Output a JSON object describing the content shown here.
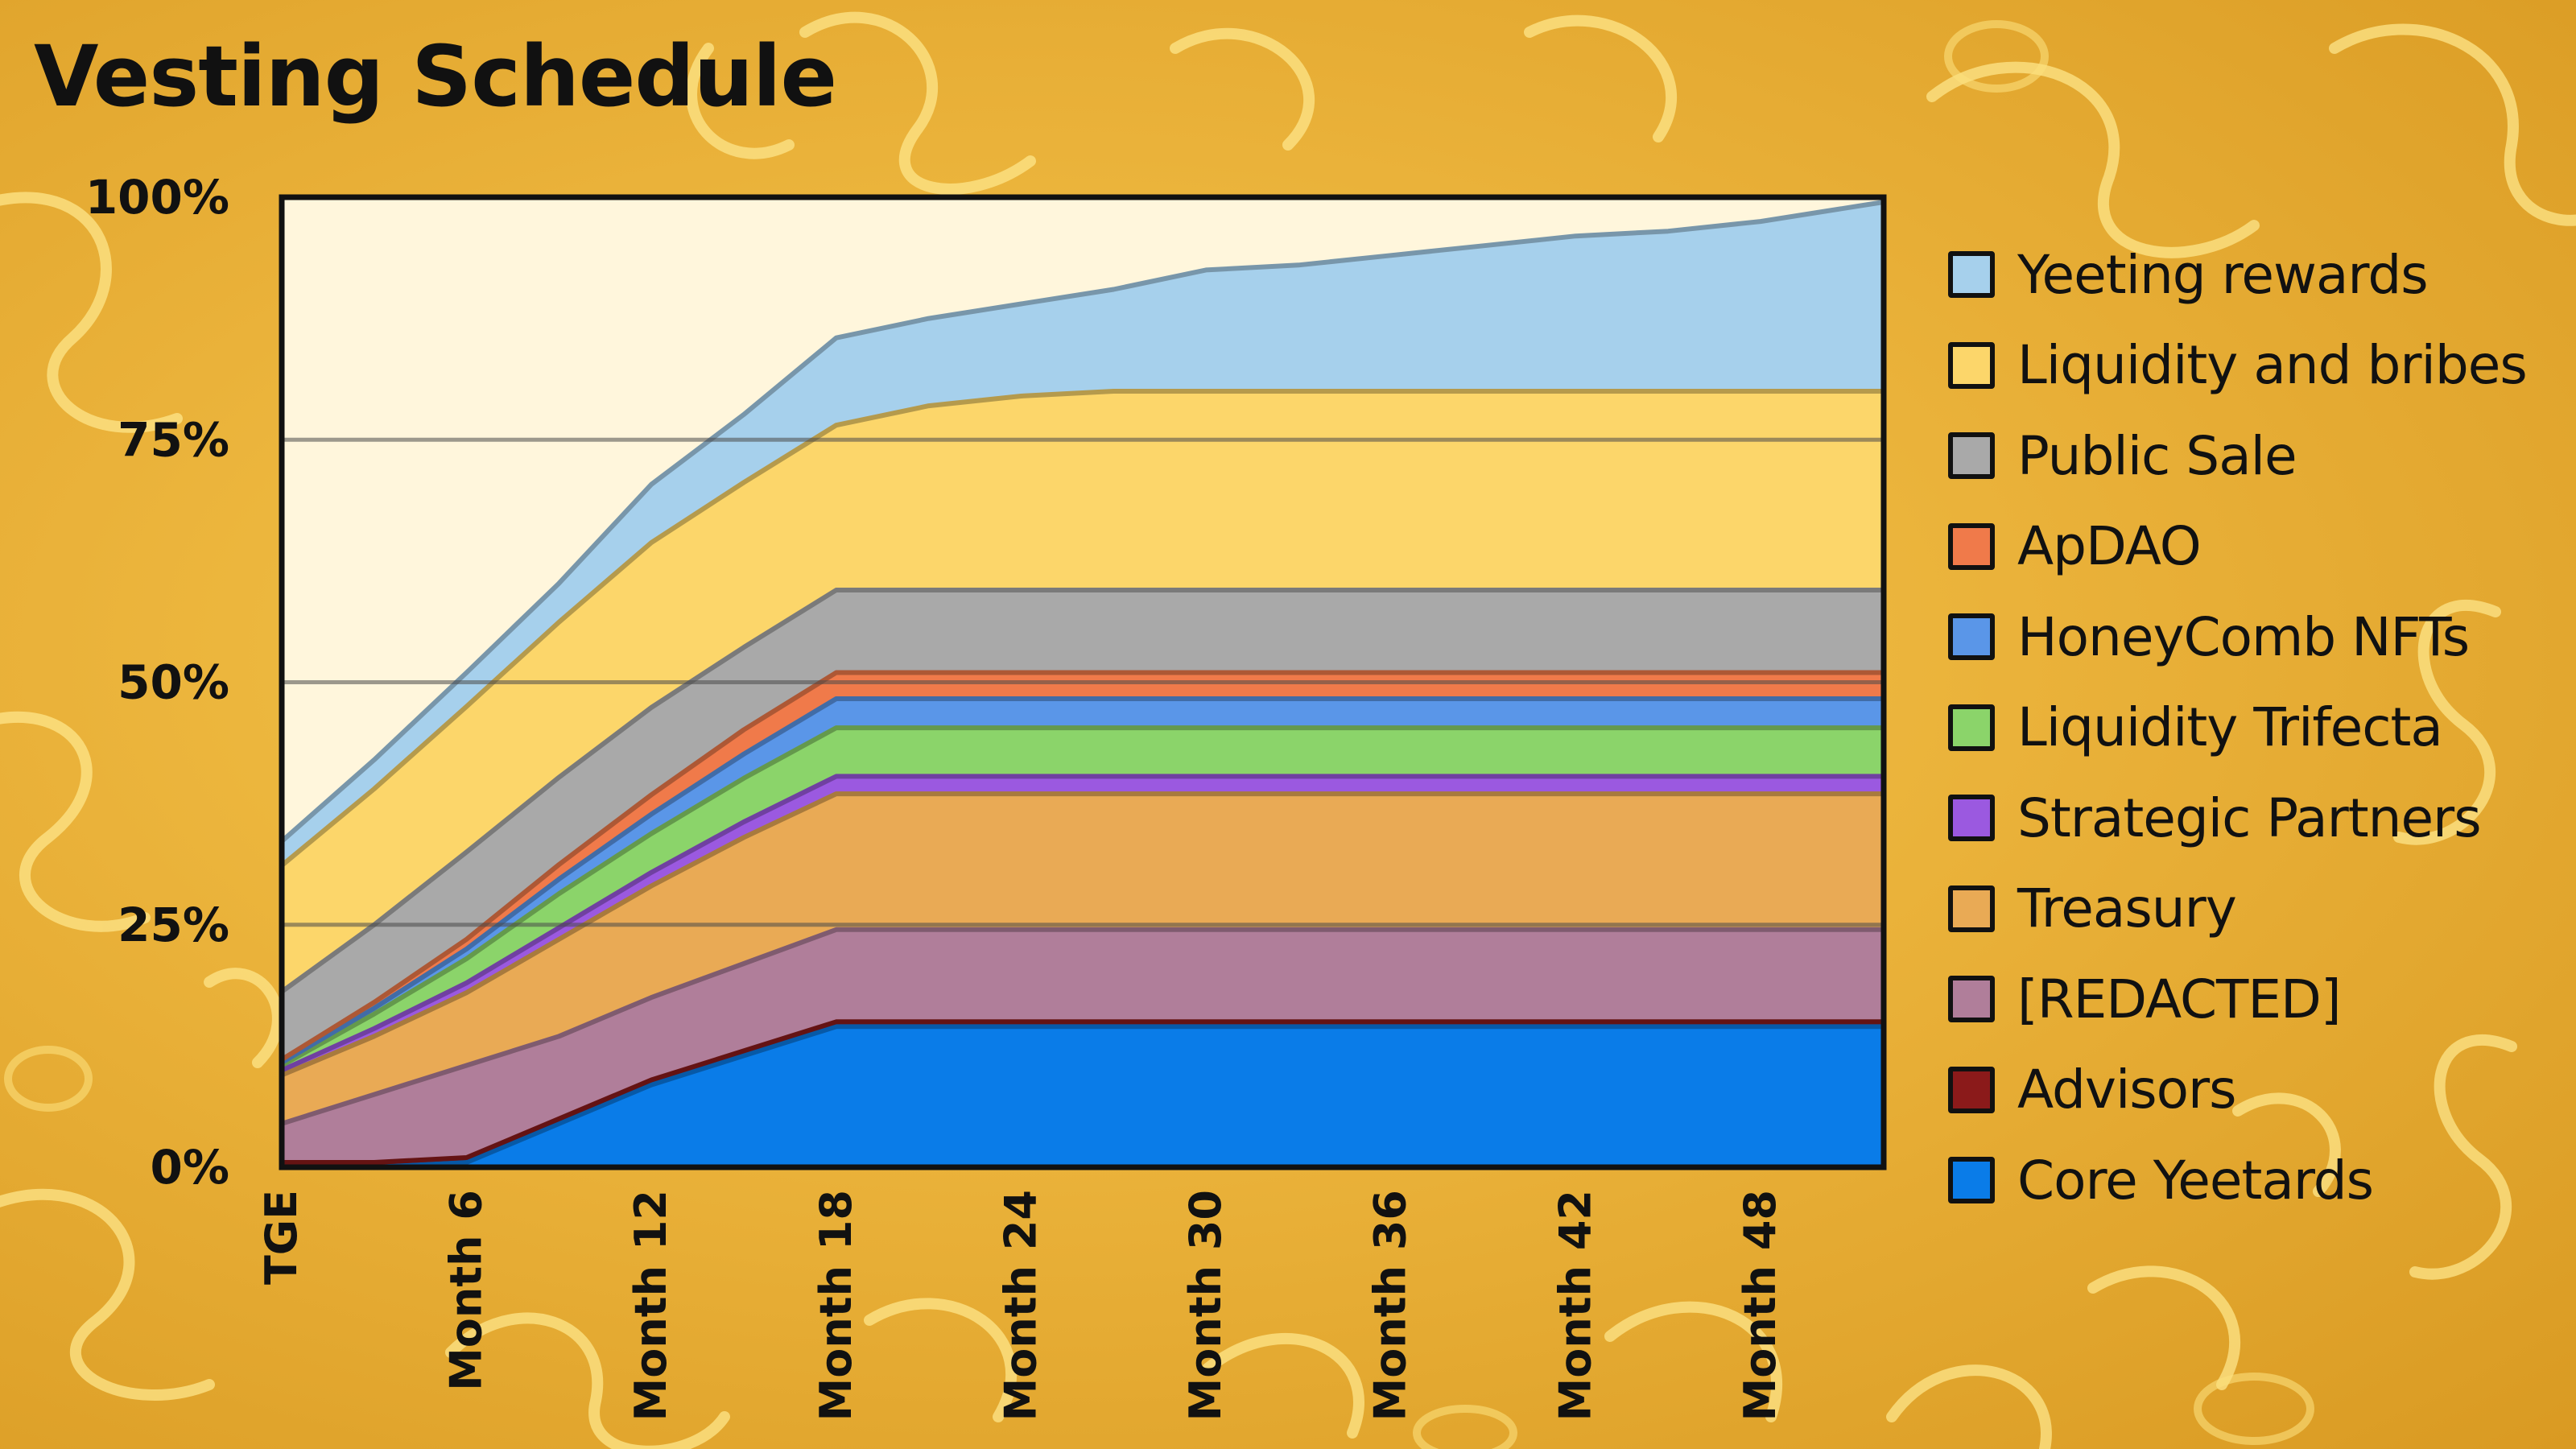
{
  "title": "Vesting Schedule",
  "chart_data": {
    "type": "area",
    "stacked": true,
    "title": "Vesting Schedule",
    "xlabel": "",
    "ylabel": "",
    "ylim": [
      0,
      100
    ],
    "y_tick_labels": [
      "0%",
      "25%",
      "50%",
      "75%",
      "100%"
    ],
    "y_tick_values": [
      0,
      25,
      50,
      75,
      100
    ],
    "x_tick_labels": [
      "TGE",
      "Month 6",
      "Month 12",
      "Month 18",
      "Month 24",
      "Month 30",
      "Month 36",
      "Month 42",
      "Month 48"
    ],
    "x_tick_values": [
      0,
      6,
      12,
      18,
      24,
      30,
      36,
      42,
      48
    ],
    "xlim": [
      0,
      52
    ],
    "grid": "horizontal",
    "legend_position": "right",
    "x": [
      0,
      3,
      6,
      9,
      12,
      15,
      18,
      21,
      24,
      27,
      30,
      33,
      36,
      39,
      42,
      45,
      48,
      52
    ],
    "series": [
      {
        "name": "Core Yeetards",
        "color": "#0a7ce8",
        "values": [
          0,
          0,
          0.5,
          4.5,
          8.5,
          11.5,
          14.5,
          14.5,
          14.5,
          14.5,
          14.5,
          14.5,
          14.5,
          14.5,
          14.5,
          14.5,
          14.5,
          14.5
        ]
      },
      {
        "name": "Advisors",
        "color": "#8b1a1a",
        "values": [
          0.5,
          0.5,
          0.5,
          0.5,
          0.5,
          0.5,
          0.5,
          0.5,
          0.5,
          0.5,
          0.5,
          0.5,
          0.5,
          0.5,
          0.5,
          0.5,
          0.5,
          0.5
        ]
      },
      {
        "name": "[REDACTED]",
        "color": "#b07e9a",
        "values": [
          4,
          7,
          9.5,
          8.5,
          8.5,
          9,
          9.5,
          9.5,
          9.5,
          9.5,
          9.5,
          9.5,
          9.5,
          9.5,
          9.5,
          9.5,
          9.5,
          9.5
        ]
      },
      {
        "name": "Treasury",
        "color": "#e9aa55",
        "values": [
          5,
          6,
          7.5,
          10,
          11.5,
          13,
          14,
          14,
          14,
          14,
          14,
          14,
          14,
          14,
          14,
          14,
          14,
          14
        ]
      },
      {
        "name": "Strategic Partners",
        "color": "#9b59e0",
        "values": [
          0.5,
          0.8,
          1,
          1.2,
          1.4,
          1.6,
          1.8,
          1.8,
          1.8,
          1.8,
          1.8,
          1.8,
          1.8,
          1.8,
          1.8,
          1.8,
          1.8,
          1.8
        ]
      },
      {
        "name": "Liquidity Trifecta",
        "color": "#8bd46a",
        "values": [
          0.5,
          1.5,
          2.5,
          3.5,
          4,
          4.5,
          5,
          5,
          5,
          5,
          5,
          5,
          5,
          5,
          5,
          5,
          5,
          5
        ]
      },
      {
        "name": "HoneyComb NFTs",
        "color": "#5a96e8",
        "values": [
          0.3,
          0.6,
          1,
          1.5,
          2,
          2.5,
          3,
          3,
          3,
          3,
          3,
          3,
          3,
          3,
          3,
          3,
          3,
          3
        ]
      },
      {
        "name": "ApDAO",
        "color": "#f07a4a",
        "values": [
          0.3,
          0.6,
          1,
          1.5,
          2,
          2.5,
          2.7,
          2.7,
          2.7,
          2.7,
          2.7,
          2.7,
          2.7,
          2.7,
          2.7,
          2.7,
          2.7,
          2.7
        ]
      },
      {
        "name": "Public Sale",
        "color": "#a9a9a9",
        "values": [
          7,
          8,
          9,
          9,
          9,
          8.5,
          8.5,
          8.5,
          8.5,
          8.5,
          8.5,
          8.5,
          8.5,
          8.5,
          8.5,
          8.5,
          8.5,
          8.5
        ]
      },
      {
        "name": "Liquidity and bribes",
        "color": "#fcd66a",
        "values": [
          13,
          14,
          15,
          16,
          17,
          17,
          17,
          19,
          20,
          20.5,
          20.5,
          20.5,
          20.5,
          20.5,
          20.5,
          20.5,
          20.5,
          20.5
        ]
      },
      {
        "name": "Yeeting rewards",
        "color": "#a6d0ec",
        "values": [
          2.5,
          3,
          3.5,
          4,
          6,
          7,
          9,
          9,
          9.5,
          10.5,
          12.5,
          13,
          14,
          15,
          16,
          16.5,
          17.5,
          19.5
        ]
      }
    ]
  }
}
